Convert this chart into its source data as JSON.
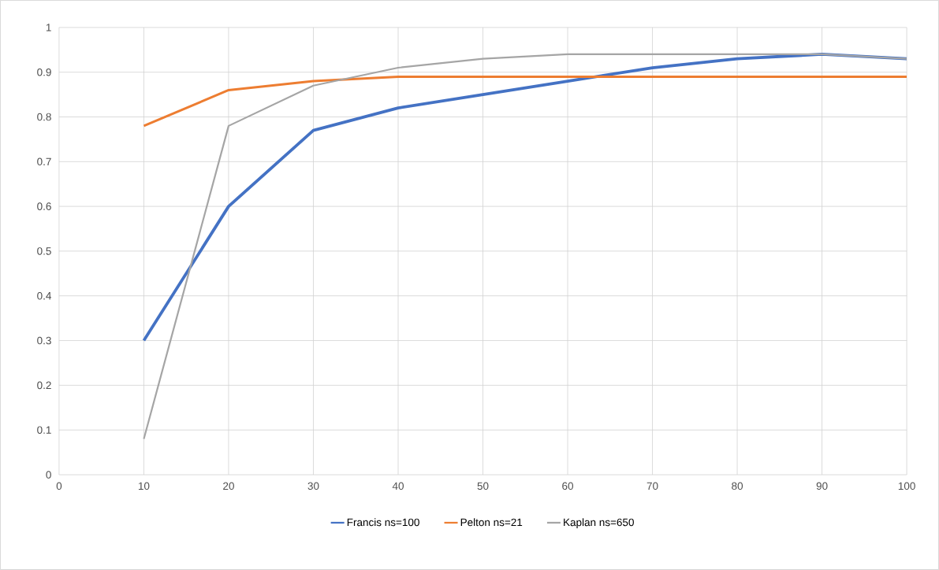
{
  "chart_data": {
    "type": "line",
    "x": [
      10,
      20,
      30,
      40,
      50,
      60,
      70,
      80,
      90,
      100
    ],
    "xlim": [
      0,
      100
    ],
    "xticks": [
      0,
      10,
      20,
      30,
      40,
      50,
      60,
      70,
      80,
      90,
      100
    ],
    "ylim": [
      0,
      1
    ],
    "yticks": [
      0,
      0.1,
      0.2,
      0.3,
      0.4,
      0.5,
      0.6,
      0.7,
      0.8,
      0.9,
      1
    ],
    "grid": true,
    "legend": "bottom",
    "marker": "none",
    "line_style": "solid",
    "series": [
      {
        "name": "Francis ns=100",
        "color": "#4472c4",
        "values": [
          0.3,
          0.6,
          0.77,
          0.82,
          0.85,
          0.88,
          0.91,
          0.93,
          0.94,
          0.93
        ]
      },
      {
        "name": "Pelton ns=21",
        "color": "#ed7d31",
        "values": [
          0.78,
          0.86,
          0.88,
          0.89,
          0.89,
          0.89,
          0.89,
          0.89,
          0.89,
          0.89
        ]
      },
      {
        "name": "Kaplan ns=650",
        "color": "#a5a5a5",
        "values": [
          0.08,
          0.78,
          0.87,
          0.91,
          0.93,
          0.94,
          0.94,
          0.94,
          0.94,
          0.93
        ]
      }
    ]
  }
}
